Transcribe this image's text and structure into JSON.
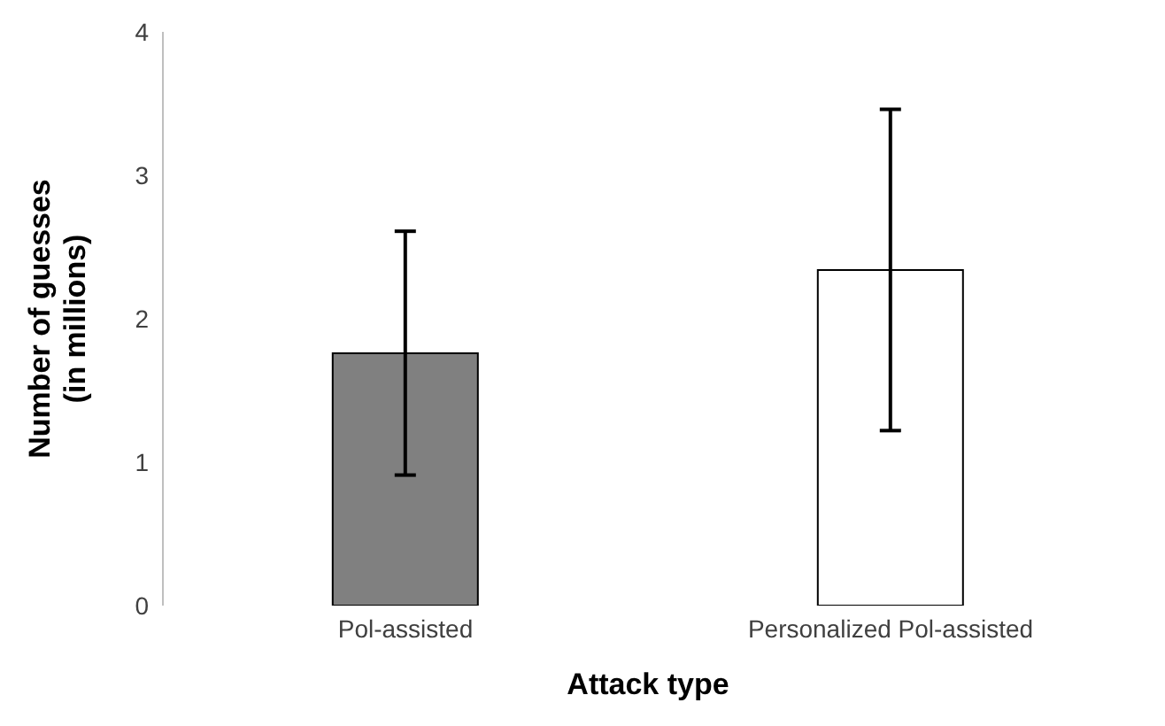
{
  "chart_data": {
    "type": "bar",
    "xlabel": "Attack type",
    "ylabel": "Number of guesses\n(in millions)",
    "categories": [
      "Pol-assisted",
      "Personalized Pol-assisted"
    ],
    "values": [
      1.76,
      2.34
    ],
    "colors": [
      "#808080",
      "#ffffff"
    ],
    "errors": [
      0.85,
      1.12
    ],
    "ylim": [
      0,
      4
    ],
    "yticks": [
      0,
      1,
      2,
      3,
      4
    ],
    "grid": false,
    "legend": false
  }
}
